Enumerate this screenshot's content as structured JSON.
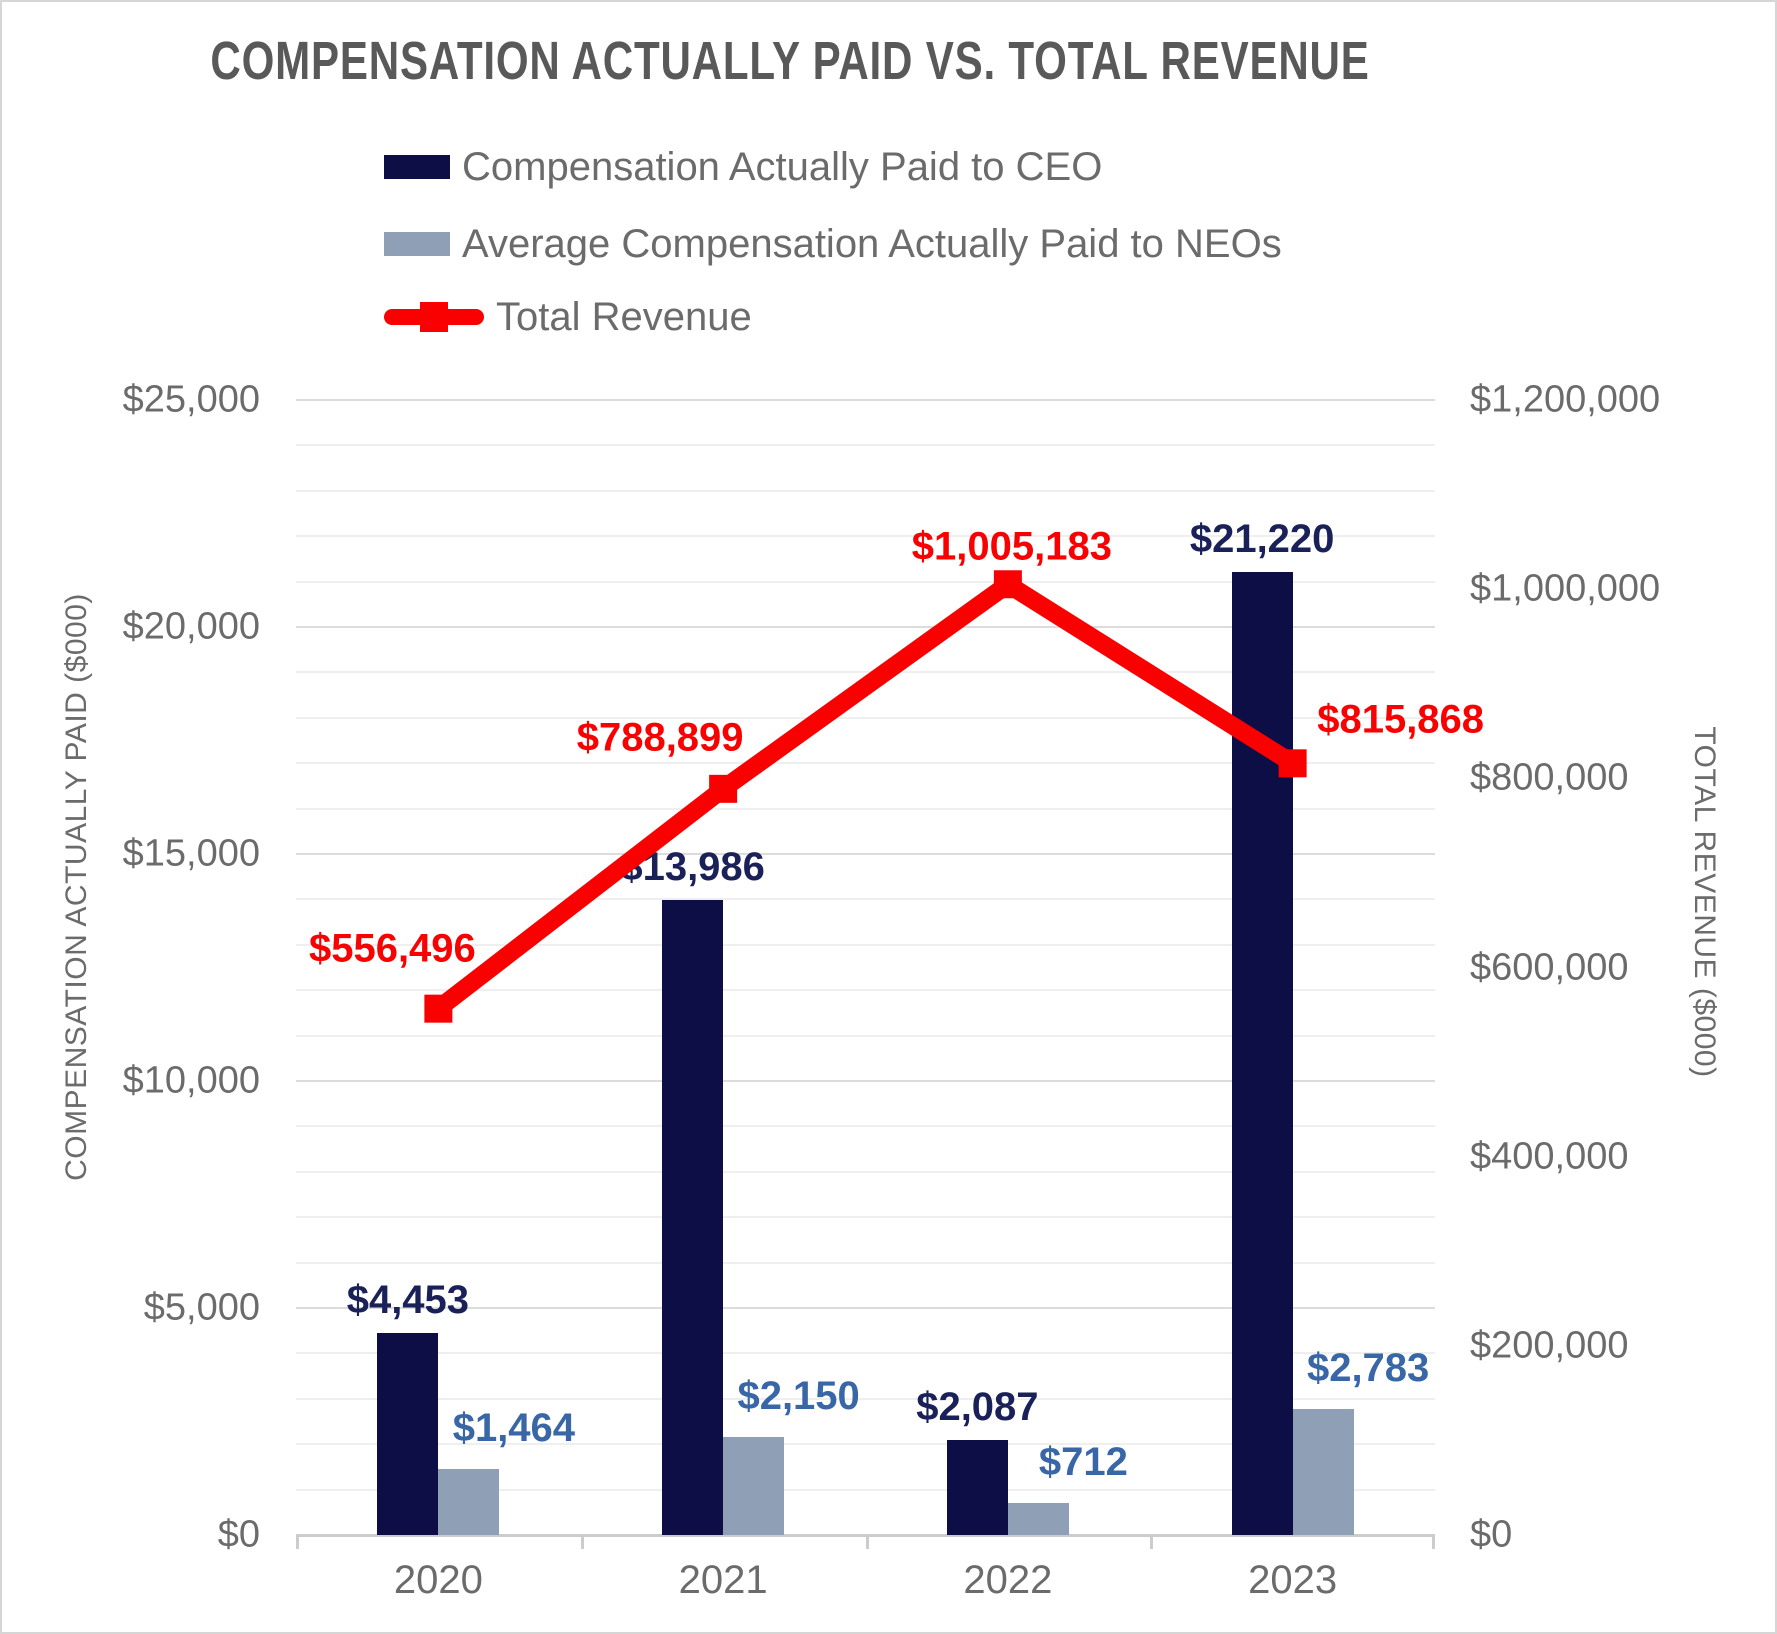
{
  "title": {
    "text": "COMPENSATION ACTUALLY PAID VS. TOTAL REVENUE"
  },
  "legend": {
    "position": "top-left",
    "items": [
      {
        "label": "Compensation Actually Paid to CEO",
        "key": "bar",
        "color": "#0e0e46"
      },
      {
        "label": "Average Compensation Actually Paid to NEOs",
        "key": "bar",
        "color": "#8fa0b6"
      },
      {
        "label": "Total Revenue",
        "key": "line",
        "color": "#f90101"
      }
    ]
  },
  "chart_data": {
    "type": "bar",
    "subtype": "clustered-bars-with-line-overlay",
    "categories": [
      "2020",
      "2021",
      "2022",
      "2023"
    ],
    "series": [
      {
        "name": "Compensation Actually Paid to CEO",
        "type": "bar",
        "axis": "left",
        "color": "#0e0e46",
        "values": [
          4453,
          13986,
          2087,
          21220
        ],
        "labels": [
          "$4,453",
          "$13,986",
          "$2,087",
          "$21,220"
        ],
        "label_color": "#1a2158"
      },
      {
        "name": "Average Compensation Actually Paid to NEOs",
        "type": "bar",
        "axis": "left",
        "color": "#8fa0b6",
        "values": [
          1464,
          2150,
          712,
          2783
        ],
        "labels": [
          "$1,464",
          "$2,150",
          "$712",
          "$2,783"
        ],
        "label_color": "#3966a6"
      },
      {
        "name": "Total Revenue",
        "type": "line",
        "axis": "right",
        "color": "#f90101",
        "values": [
          556496,
          788899,
          1005183,
          815868
        ],
        "labels": [
          "$556,496",
          "$788,899",
          "$1,005,183",
          "$815,868"
        ],
        "label_color": "#f90101",
        "label_offsets": [
          [
            -46,
            -60
          ],
          [
            -63,
            -51
          ],
          [
            4,
            -37
          ],
          [
            108,
            -43
          ]
        ],
        "marker": "square"
      }
    ],
    "left_axis": {
      "title": "COMPENSATION ACTUALLY PAID ($000)",
      "min": 0,
      "max": 25000,
      "major_step": 5000,
      "minor_step": 1000,
      "tick_labels": [
        "$0",
        "$5,000",
        "$10,000",
        "$15,000",
        "$20,000",
        "$25,000"
      ]
    },
    "right_axis": {
      "title": "TOTAL REVENUE ($000)",
      "min": 0,
      "max": 1200000,
      "major_step": 200000,
      "tick_labels": [
        "$0",
        "$200,000",
        "$400,000",
        "$600,000",
        "$800,000",
        "$1,000,000",
        "$1,200,000"
      ]
    },
    "grid": {
      "minor_color": "#efefef",
      "major_color": "#dcdcdc",
      "axis_color": "#cccccc"
    },
    "legend_position": "top-left"
  }
}
